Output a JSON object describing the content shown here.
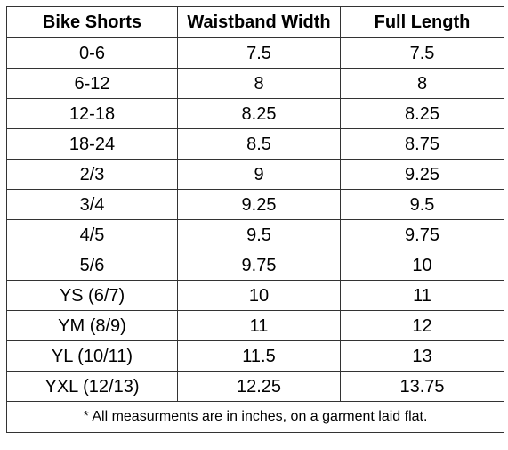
{
  "table": {
    "headers": [
      "Bike Shorts",
      "Waistband Width",
      "Full Length"
    ],
    "rows": [
      [
        "0-6",
        "7.5",
        "7.5"
      ],
      [
        "6-12",
        "8",
        "8"
      ],
      [
        "12-18",
        "8.25",
        "8.25"
      ],
      [
        "18-24",
        "8.5",
        "8.75"
      ],
      [
        "2/3",
        "9",
        "9.25"
      ],
      [
        "3/4",
        "9.25",
        "9.5"
      ],
      [
        "4/5",
        "9.5",
        "9.75"
      ],
      [
        "5/6",
        "9.75",
        "10"
      ],
      [
        "YS (6/7)",
        "10",
        "11"
      ],
      [
        "YM (8/9)",
        "11",
        "12"
      ],
      [
        "YL (10/11)",
        "11.5",
        "13"
      ],
      [
        "YXL (12/13)",
        "12.25",
        "13.75"
      ]
    ],
    "footnote": "* All measurments are in inches, on a garment laid flat."
  }
}
